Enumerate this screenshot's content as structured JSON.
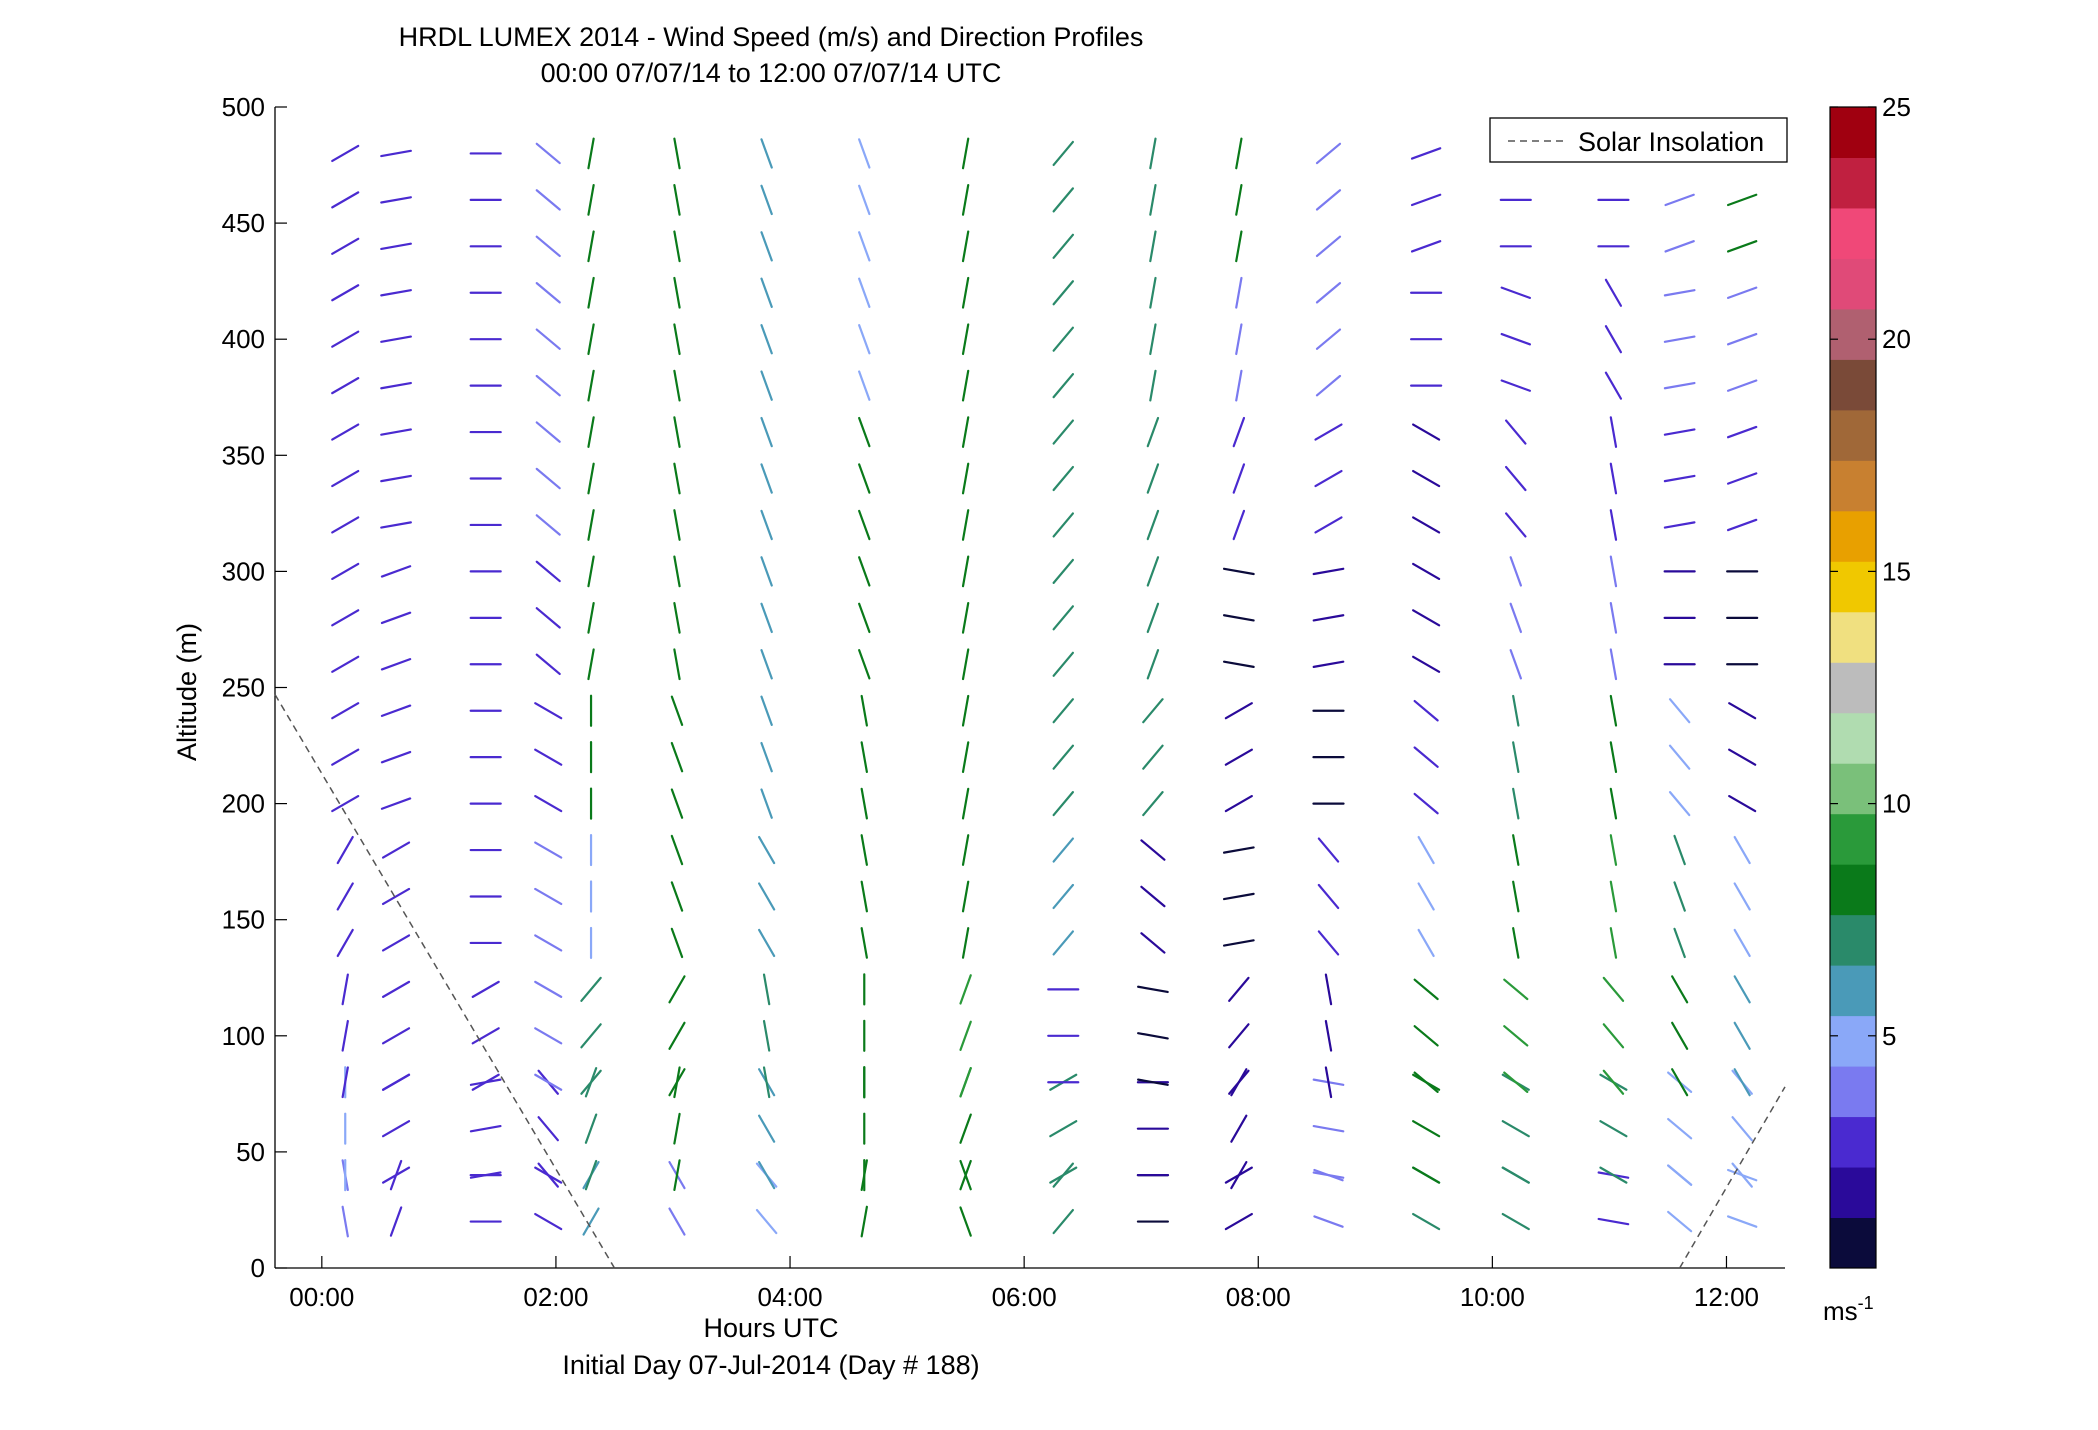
{
  "chart_data": {
    "type": "vector-field",
    "title": "HRDL LUMEX 2014 - Wind Speed (m/s) and Direction Profiles",
    "subtitle": "00:00 07/07/14 to 12:00 07/07/14  UTC",
    "xlabel": "Hours UTC",
    "xlabel_secondary": "Initial Day 07-Jul-2014 (Day # 188)",
    "ylabel": "Altitude (m)",
    "xlim": [
      -0.4,
      12.5
    ],
    "ylim": [
      0,
      500
    ],
    "x_ticks": [
      0,
      2,
      4,
      6,
      8,
      10,
      12
    ],
    "x_tick_labels": [
      "00:00",
      "02:00",
      "04:00",
      "06:00",
      "08:00",
      "10:00",
      "12:00"
    ],
    "y_ticks": [
      0,
      50,
      100,
      150,
      200,
      250,
      300,
      350,
      400,
      450,
      500
    ],
    "y_tick_labels": [
      "0",
      "50",
      "100",
      "150",
      "200",
      "250",
      "300",
      "350",
      "400",
      "450",
      "500"
    ],
    "colorbar": {
      "range": [
        0,
        25
      ],
      "ticks": [
        5,
        10,
        15,
        20,
        25
      ],
      "tick_labels": [
        "5",
        "10",
        "15",
        "20",
        "25"
      ],
      "unit_label": "ms",
      "unit_exponent": "-1",
      "colors": [
        "#0b0b3b",
        "#2a0a9a",
        "#4a2ad0",
        "#7a7af0",
        "#8aa8f8",
        "#4a9ab8",
        "#2a8a6a",
        "#0a7a1a",
        "#2a9a3a",
        "#7ac07a",
        "#b0dcb0",
        "#bcbcbc",
        "#f0e080",
        "#f0c800",
        "#e8a000",
        "#c88030",
        "#a06838",
        "#7a4a38",
        "#b06070",
        "#e04a78",
        "#f04878",
        "#c02040",
        "#a00010"
      ]
    },
    "legend": {
      "entries": [
        "Solar Insolation"
      ],
      "placement": "top-right",
      "line_style": "dashed",
      "color": "#555555"
    },
    "altitudes": [
      20,
      40,
      60,
      80,
      100,
      120,
      140,
      160,
      180,
      200,
      220,
      240,
      260,
      280,
      300,
      320,
      340,
      360,
      380,
      400,
      420,
      440,
      460,
      480,
      500
    ],
    "series": [
      {
        "x": [
          0.2,
          0.6,
          1.4,
          1.9,
          2.3,
          3.0,
          3.8,
          4.6,
          5.5,
          6.3,
          7.1,
          7.8,
          8.6,
          9.4,
          10.2,
          11.0,
          11.6,
          12.1
        ],
        "altitude": 20,
        "dir_deg": [
          350,
          20,
          90,
          300,
          30,
          330,
          320,
          10,
          340,
          40,
          90,
          60,
          110,
          120,
          120,
          100,
          130,
          110
        ],
        "speed": [
          4,
          3,
          3,
          3,
          6,
          4,
          5,
          8,
          8,
          7,
          1,
          2,
          4,
          7,
          7,
          3,
          5,
          5
        ]
      },
      {
        "x": [
          0.2,
          0.6,
          1.4,
          1.9,
          2.3,
          3.0,
          3.8,
          4.6,
          5.5,
          6.3,
          7.1,
          7.8,
          8.6,
          9.4,
          10.2,
          11.0,
          11.6,
          12.1
        ],
        "altitude": 60,
        "dir_deg": [
          0,
          60,
          80,
          320,
          20,
          10,
          330,
          0,
          20,
          60,
          90,
          30,
          100,
          120,
          120,
          120,
          130,
          140
        ],
        "speed": [
          5,
          3,
          3,
          3,
          7,
          8,
          6,
          8,
          8,
          7,
          2,
          2,
          4,
          8,
          7,
          7,
          5,
          5
        ]
      },
      {
        "x": [
          0.2,
          0.6,
          1.4,
          1.9,
          2.3,
          3.0,
          3.8,
          4.6,
          5.5,
          6.3,
          7.1,
          7.8,
          8.6,
          9.4,
          10.2,
          11.0,
          11.6,
          12.1
        ],
        "altitude": 100,
        "dir_deg": [
          10,
          60,
          60,
          300,
          40,
          30,
          350,
          0,
          20,
          90,
          100,
          40,
          350,
          130,
          130,
          140,
          150,
          150
        ],
        "speed": [
          3,
          3,
          3,
          4,
          7,
          8,
          7,
          8,
          9,
          3,
          1,
          2,
          2,
          8,
          9,
          9,
          8,
          6
        ]
      },
      {
        "x": [
          0.2,
          0.6,
          1.4,
          1.9,
          2.3,
          3.0,
          3.8,
          4.6,
          5.5,
          6.3,
          7.1,
          7.8,
          8.6,
          9.4,
          10.2,
          11.0,
          11.6,
          12.1
        ],
        "altitude": 160,
        "dir_deg": [
          30,
          60,
          90,
          300,
          0,
          340,
          330,
          350,
          10,
          40,
          130,
          80,
          140,
          150,
          170,
          170,
          160,
          150
        ],
        "speed": [
          3,
          3,
          3,
          4,
          5,
          8,
          6,
          8,
          8,
          6,
          2,
          1,
          3,
          5,
          8,
          9,
          7,
          5
        ]
      },
      {
        "x": [
          0.2,
          0.6,
          1.4,
          1.9,
          2.3,
          3.0,
          3.8,
          4.6,
          5.5,
          6.3,
          7.1,
          7.8,
          8.6,
          9.4,
          10.2,
          11.0,
          11.6,
          12.1
        ],
        "altitude": 220,
        "dir_deg": [
          60,
          70,
          90,
          300,
          0,
          340,
          340,
          350,
          10,
          40,
          40,
          60,
          90,
          130,
          170,
          170,
          140,
          120
        ],
        "speed": [
          3,
          3,
          3,
          3,
          8,
          8,
          6,
          8,
          8,
          7,
          7,
          2,
          1,
          3,
          7,
          8,
          5,
          2
        ]
      },
      {
        "x": [
          0.2,
          0.6,
          1.4,
          1.9,
          2.3,
          3.0,
          3.8,
          4.6,
          5.5,
          6.3,
          7.1,
          7.8,
          8.6,
          9.4,
          10.2,
          11.0,
          11.6,
          12.1
        ],
        "altitude": 280,
        "dir_deg": [
          60,
          70,
          90,
          310,
          10,
          350,
          340,
          340,
          10,
          40,
          20,
          100,
          80,
          300,
          160,
          170,
          90,
          90
        ],
        "speed": [
          3,
          3,
          3,
          3,
          8,
          8,
          6,
          8,
          8,
          7,
          7,
          1,
          2,
          2,
          4,
          4,
          2,
          1
        ]
      },
      {
        "x": [
          0.2,
          0.6,
          1.4,
          1.9,
          2.3,
          3.0,
          3.8,
          4.6,
          5.5,
          6.3,
          7.1,
          7.8,
          8.6,
          9.4,
          10.2,
          11.0,
          11.6,
          12.1
        ],
        "altitude": 340,
        "dir_deg": [
          60,
          80,
          90,
          310,
          10,
          350,
          340,
          340,
          10,
          40,
          20,
          20,
          60,
          120,
          140,
          170,
          80,
          70
        ],
        "speed": [
          3,
          3,
          3,
          4,
          8,
          8,
          6,
          8,
          8,
          7,
          7,
          3,
          3,
          2,
          3,
          3,
          3,
          3
        ]
      },
      {
        "x": [
          0.2,
          0.6,
          1.4,
          1.9,
          2.3,
          3.0,
          3.8,
          4.6,
          5.5,
          6.3,
          7.1,
          7.8,
          8.6,
          9.4,
          10.2,
          11.0,
          11.6,
          12.1
        ],
        "altitude": 400,
        "dir_deg": [
          60,
          80,
          90,
          310,
          10,
          350,
          340,
          340,
          10,
          40,
          10,
          10,
          50,
          90,
          110,
          150,
          80,
          70
        ],
        "speed": [
          3,
          3,
          3,
          4,
          8,
          8,
          6,
          5,
          8,
          7,
          7,
          4,
          4,
          3,
          3,
          3,
          4,
          4
        ]
      },
      {
        "x": [
          0.2,
          0.6,
          1.4,
          1.9,
          2.3,
          3.0,
          3.8,
          4.6,
          5.5,
          6.3,
          7.1,
          7.8,
          8.6,
          9.4,
          10.2,
          11.0,
          11.6,
          12.1
        ],
        "altitude": 460,
        "dir_deg": [
          60,
          80,
          90,
          310,
          10,
          350,
          340,
          340,
          10,
          40,
          10,
          10,
          50,
          70,
          90,
          90,
          70,
          70
        ],
        "speed": [
          3,
          3,
          3,
          4,
          8,
          8,
          6,
          5,
          8,
          7,
          7,
          8,
          4,
          3,
          3,
          3,
          4,
          8
        ]
      }
    ]
  }
}
